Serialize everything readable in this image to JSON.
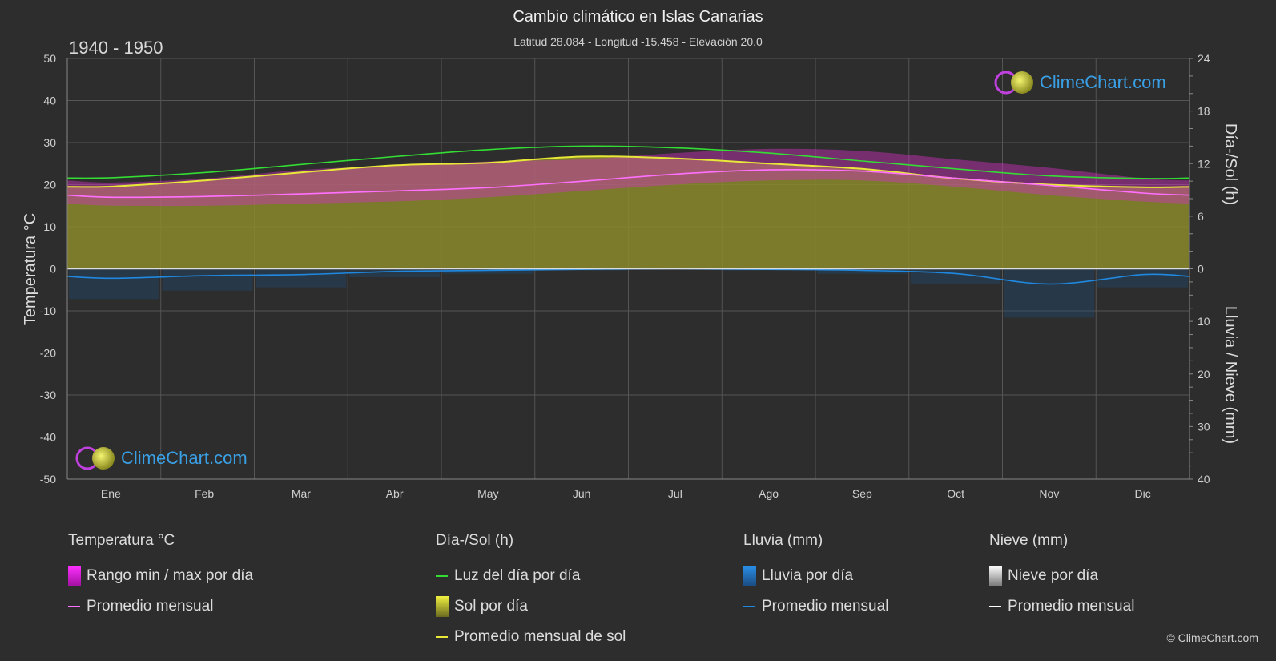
{
  "title": "Cambio climático en Islas Canarias",
  "subtitle": "Latitud 28.084 - Longitud -15.458 - Elevación 20.0",
  "period": "1940 - 1950",
  "logo_text": "ClimeChart.com",
  "copyright": "© ClimeChart.com",
  "colors": {
    "background": "#2d2d2d",
    "temp_range": "#d020d0",
    "temp_avg": "#ff70ff",
    "daylight": "#33dd33",
    "sun_fill": "#8f8f2a",
    "sun_avg": "#e8e838",
    "rain": "#1f88e0",
    "snow": "#ffffff"
  },
  "chart_data": {
    "type": "area",
    "categories": [
      "Ene",
      "Feb",
      "Mar",
      "Abr",
      "May",
      "Jun",
      "Jul",
      "Ago",
      "Sep",
      "Oct",
      "Nov",
      "Dic"
    ],
    "left_axis": {
      "label": "Temperatura °C",
      "range": [
        -50,
        50
      ],
      "ticks": [
        "50",
        "40",
        "30",
        "20",
        "10",
        "0",
        "-10",
        "-20",
        "-30",
        "-40",
        "-50"
      ]
    },
    "right_axis_top": {
      "label": "Día-/Sol (h)",
      "range": [
        0,
        24
      ],
      "ticks": [
        "24",
        "18",
        "12",
        "6",
        "0"
      ]
    },
    "right_axis_bottom": {
      "label": "Lluvia / Nieve (mm)",
      "range": [
        0,
        40
      ],
      "ticks": [
        "0",
        "10",
        "20",
        "30",
        "40"
      ]
    },
    "grid": true,
    "series": [
      {
        "name": "Luz del día por día",
        "unit": "h",
        "values": [
          10.4,
          11.0,
          11.9,
          12.8,
          13.6,
          14.0,
          13.8,
          13.2,
          12.3,
          11.4,
          10.6,
          10.3
        ]
      },
      {
        "name": "Promedio mensual de sol",
        "unit": "h",
        "values": [
          9.4,
          10.1,
          11.0,
          11.8,
          12.1,
          12.8,
          12.6,
          12.0,
          11.4,
          10.3,
          9.6,
          9.3
        ]
      },
      {
        "name": "Promedio mensual",
        "unit": "°C",
        "values": [
          17.0,
          17.2,
          17.8,
          18.5,
          19.3,
          20.8,
          22.5,
          23.5,
          23.2,
          21.5,
          19.8,
          18.0
        ]
      },
      {
        "name": "Rango min / max por día",
        "unit": "°C",
        "min": [
          15.0,
          15.0,
          15.5,
          16.0,
          17.0,
          18.5,
          20.0,
          21.0,
          21.0,
          19.5,
          17.5,
          16.0
        ],
        "max": [
          20.5,
          21.5,
          23.5,
          24.5,
          25.5,
          26.0,
          27.5,
          28.5,
          28.0,
          26.0,
          24.0,
          21.5
        ]
      },
      {
        "name": "Promedio mensual",
        "unit": "mm",
        "values": [
          1.8,
          1.3,
          1.1,
          0.5,
          0.3,
          0.1,
          0.0,
          0.1,
          0.3,
          0.9,
          2.9,
          1.1
        ]
      }
    ]
  },
  "legend": {
    "groups": [
      {
        "header": "Temperatura °C",
        "items": [
          {
            "label": "Rango min / max por día",
            "kind": "swatch-magenta"
          },
          {
            "label": "Promedio mensual",
            "kind": "line-pink"
          }
        ]
      },
      {
        "header": "Día-/Sol (h)",
        "items": [
          {
            "label": "Luz del día por día",
            "kind": "line-green"
          },
          {
            "label": "Sol por día",
            "kind": "swatch-yellow"
          },
          {
            "label": "Promedio mensual de sol",
            "kind": "line-yellow"
          }
        ]
      },
      {
        "header": "Lluvia (mm)",
        "items": [
          {
            "label": "Lluvia por día",
            "kind": "swatch-blue"
          },
          {
            "label": "Promedio mensual",
            "kind": "line-blue"
          }
        ]
      },
      {
        "header": "Nieve (mm)",
        "items": [
          {
            "label": "Nieve por día",
            "kind": "swatch-white"
          },
          {
            "label": "Promedio mensual",
            "kind": "line-white"
          }
        ]
      }
    ]
  }
}
